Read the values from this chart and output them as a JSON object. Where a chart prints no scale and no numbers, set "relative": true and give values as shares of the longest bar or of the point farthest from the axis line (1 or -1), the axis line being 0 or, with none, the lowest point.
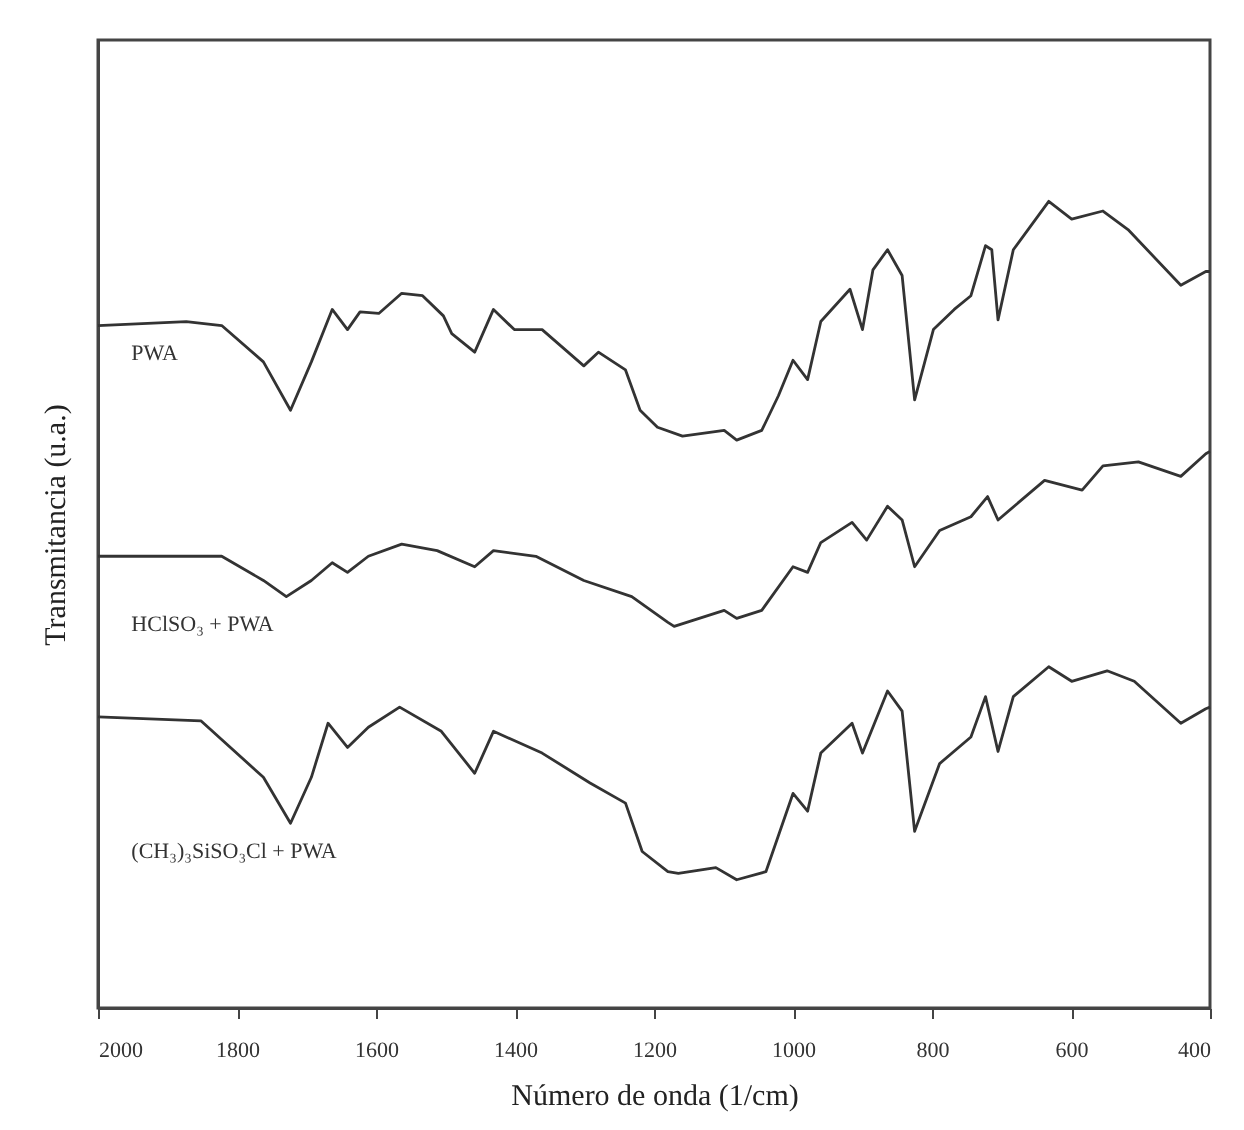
{
  "chart_data": {
    "type": "line",
    "relative": true,
    "xlabel": "Número de onda (1/cm)",
    "ylabel": "Transmitancia (u.a.)",
    "xlim": [
      2000,
      400
    ],
    "xticks": [
      2000,
      1800,
      1600,
      1400,
      1200,
      1000,
      800,
      600,
      400
    ],
    "grid": false,
    "marker": "none",
    "line_style": "solid",
    "series": [
      {
        "name": "PWA",
        "color": "#333333",
        "x": [
          2000,
          1873,
          1822,
          1762,
          1723,
          1693,
          1663,
          1641,
          1623,
          1596,
          1563,
          1533,
          1503,
          1491,
          1458,
          1431,
          1401,
          1361,
          1301,
          1280,
          1241,
          1220,
          1195,
          1159,
          1099,
          1081,
          1045,
          1021,
          1000,
          979,
          960,
          918,
          900,
          885,
          864,
          843,
          825,
          798,
          768,
          744,
          723,
          714,
          705,
          683,
          632,
          599,
          554,
          518,
          442,
          406,
          400
        ],
        "values": [
          0.846,
          0.851,
          0.846,
          0.801,
          0.741,
          0.801,
          0.866,
          0.841,
          0.863,
          0.861,
          0.886,
          0.883,
          0.858,
          0.836,
          0.813,
          0.866,
          0.841,
          0.841,
          0.796,
          0.813,
          0.791,
          0.741,
          0.72,
          0.709,
          0.716,
          0.704,
          0.716,
          0.759,
          0.803,
          0.779,
          0.851,
          0.891,
          0.841,
          0.915,
          0.94,
          0.908,
          0.754,
          0.841,
          0.866,
          0.883,
          0.945,
          0.94,
          0.853,
          0.94,
          1.0,
          0.978,
          0.988,
          0.965,
          0.896,
          0.913,
          0.913
        ]
      },
      {
        "name": "HClSO₃ + PWA",
        "color": "#333333",
        "x": [
          2000,
          1822,
          1762,
          1729,
          1693,
          1663,
          1641,
          1611,
          1563,
          1512,
          1458,
          1431,
          1370,
          1301,
          1232,
          1180,
          1171,
          1099,
          1081,
          1045,
          1000,
          979,
          960,
          915,
          894,
          864,
          843,
          825,
          789,
          744,
          720,
          705,
          638,
          584,
          554,
          503,
          442,
          406,
          400
        ],
        "values": [
          0.56,
          0.56,
          0.53,
          0.51,
          0.53,
          0.552,
          0.54,
          0.56,
          0.575,
          0.567,
          0.547,
          0.567,
          0.56,
          0.53,
          0.51,
          0.478,
          0.473,
          0.493,
          0.483,
          0.493,
          0.547,
          0.54,
          0.577,
          0.602,
          0.58,
          0.622,
          0.605,
          0.547,
          0.592,
          0.609,
          0.634,
          0.605,
          0.654,
          0.642,
          0.672,
          0.677,
          0.659,
          0.687,
          0.69
        ]
      },
      {
        "name": "(CH₃)₃SiSO₃Cl + PWA",
        "color": "#333333",
        "x": [
          2000,
          1852,
          1762,
          1723,
          1693,
          1669,
          1641,
          1611,
          1566,
          1506,
          1458,
          1431,
          1361,
          1292,
          1241,
          1217,
          1180,
          1165,
          1111,
          1081,
          1039,
          1000,
          979,
          960,
          915,
          900,
          864,
          843,
          825,
          789,
          744,
          723,
          705,
          683,
          632,
          599,
          548,
          509,
          442,
          406,
          400
        ],
        "values": [
          0.361,
          0.356,
          0.286,
          0.229,
          0.286,
          0.353,
          0.323,
          0.348,
          0.373,
          0.343,
          0.291,
          0.343,
          0.316,
          0.279,
          0.254,
          0.194,
          0.169,
          0.167,
          0.174,
          0.159,
          0.169,
          0.266,
          0.244,
          0.316,
          0.353,
          0.316,
          0.393,
          0.368,
          0.219,
          0.303,
          0.336,
          0.386,
          0.318,
          0.386,
          0.423,
          0.405,
          0.418,
          0.405,
          0.353,
          0.371,
          0.373
        ]
      }
    ]
  }
}
